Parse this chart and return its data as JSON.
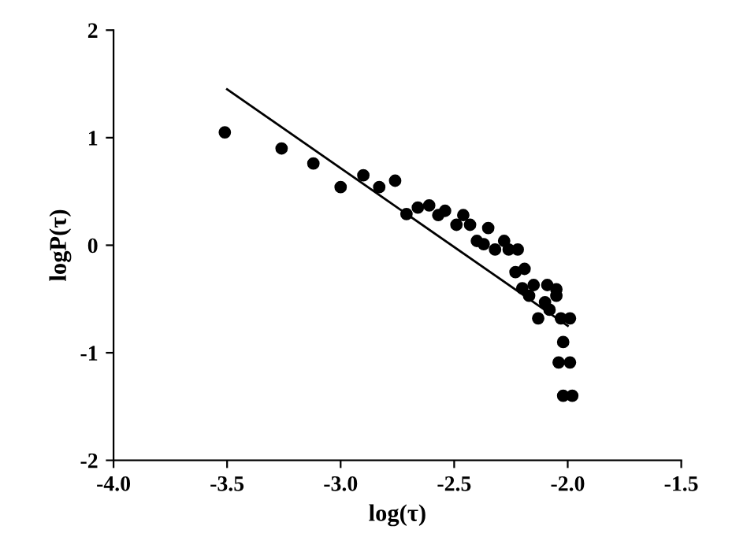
{
  "chart_data": {
    "type": "scatter",
    "xlabel": "log(τ)",
    "ylabel": "logP(τ)",
    "xlim": [
      -4.0,
      -1.5
    ],
    "xticks": [
      {
        "value": -4.0,
        "label": "-4.0"
      },
      {
        "value": -3.5,
        "label": "-3.5"
      },
      {
        "value": -3.0,
        "label": "-3.0"
      },
      {
        "value": -2.5,
        "label": "-2.5"
      },
      {
        "value": -2.0,
        "label": "-2.0"
      },
      {
        "value": -1.5,
        "label": "-1.5"
      }
    ],
    "ylim": [
      -2,
      2
    ],
    "yticks": [
      -2,
      -1,
      0,
      1,
      2
    ],
    "grid": false,
    "legend": false,
    "series": [
      {
        "color": "#000000",
        "marker": "circle",
        "x": [
          -3.51,
          -3.26,
          -3.12,
          -3.0,
          -2.9,
          -2.83,
          -2.76,
          -2.71,
          -2.66,
          -2.61,
          -2.57,
          -2.54,
          -2.49,
          -2.46,
          -2.43,
          -2.4,
          -2.37,
          -2.35,
          -2.32,
          -2.28,
          -2.26,
          -2.22,
          -2.23,
          -2.19,
          -2.2,
          -2.17,
          -2.15,
          -2.13,
          -2.1,
          -2.09,
          -2.08,
          -2.05,
          -2.05,
          -2.03,
          -1.99,
          -2.02,
          -2.04,
          -1.99,
          -2.02,
          -1.98
        ],
        "values": [
          1.05,
          0.9,
          0.76,
          0.54,
          0.65,
          0.54,
          0.6,
          0.29,
          0.35,
          0.37,
          0.28,
          0.32,
          0.19,
          0.28,
          0.19,
          0.04,
          0.01,
          0.16,
          -0.04,
          0.04,
          -0.04,
          -0.04,
          -0.25,
          -0.22,
          -0.4,
          -0.47,
          -0.37,
          -0.68,
          -0.53,
          -0.37,
          -0.6,
          -0.47,
          -0.41,
          -0.68,
          -0.68,
          -0.9,
          -1.09,
          -1.09,
          -1.4,
          -1.4
        ]
      },
      {
        "type": "line",
        "color": "#000000",
        "marker": "none",
        "line_style": "solid",
        "x": [
          -3.5,
          -2.0
        ],
        "values": [
          1.45,
          -0.75
        ]
      }
    ]
  }
}
